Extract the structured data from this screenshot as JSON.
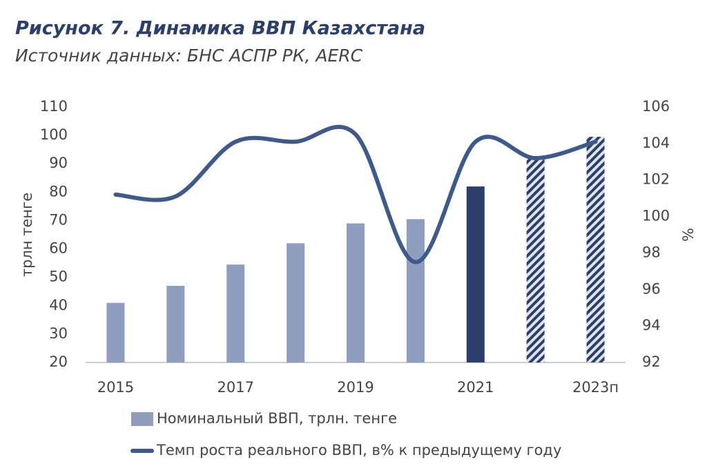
{
  "chart_data": {
    "type": "combo",
    "title": "Рисунок 7. Динамика ВВП Казахстана",
    "subtitle": "Источник данных:  БНС АСПР РК, AERC",
    "y_label": "трлн тенге",
    "y2_label": "%",
    "categories": [
      "2015",
      null,
      "2017",
      null,
      "2019",
      null,
      "2021",
      null,
      "2023п"
    ],
    "series": [
      {
        "name": "Номинальный ВВП, трлн. тенге",
        "type": "bar",
        "color": "#8f9dbf",
        "colors": [
          "#8f9dbf",
          "#8f9dbf",
          "#8f9dbf",
          "#8f9dbf",
          "#8f9dbf",
          "#8f9dbf",
          "#2b3f6b",
          "#2b3f6b",
          "#2b3f6b"
        ],
        "hatched": [
          false,
          false,
          false,
          false,
          false,
          false,
          false,
          true,
          true
        ],
        "values": [
          41,
          47,
          54.5,
          62,
          69,
          70.5,
          82,
          92.5,
          99.5
        ]
      },
      {
        "name": "Темп роста реального ВВП, в% к предыдущему году",
        "type": "line",
        "axis": "y2",
        "color": "#3d5a8a",
        "values": [
          101.2,
          101.1,
          104.1,
          104.1,
          104.5,
          97.5,
          104.1,
          103.2,
          104.1
        ]
      }
    ],
    "ylim": [
      20,
      110
    ],
    "yticks": [
      20,
      30,
      40,
      50,
      60,
      70,
      80,
      90,
      100,
      110
    ],
    "y2lim": [
      92,
      106
    ],
    "y2ticks": [
      92,
      94,
      96,
      98,
      100,
      102,
      104,
      106
    ]
  }
}
